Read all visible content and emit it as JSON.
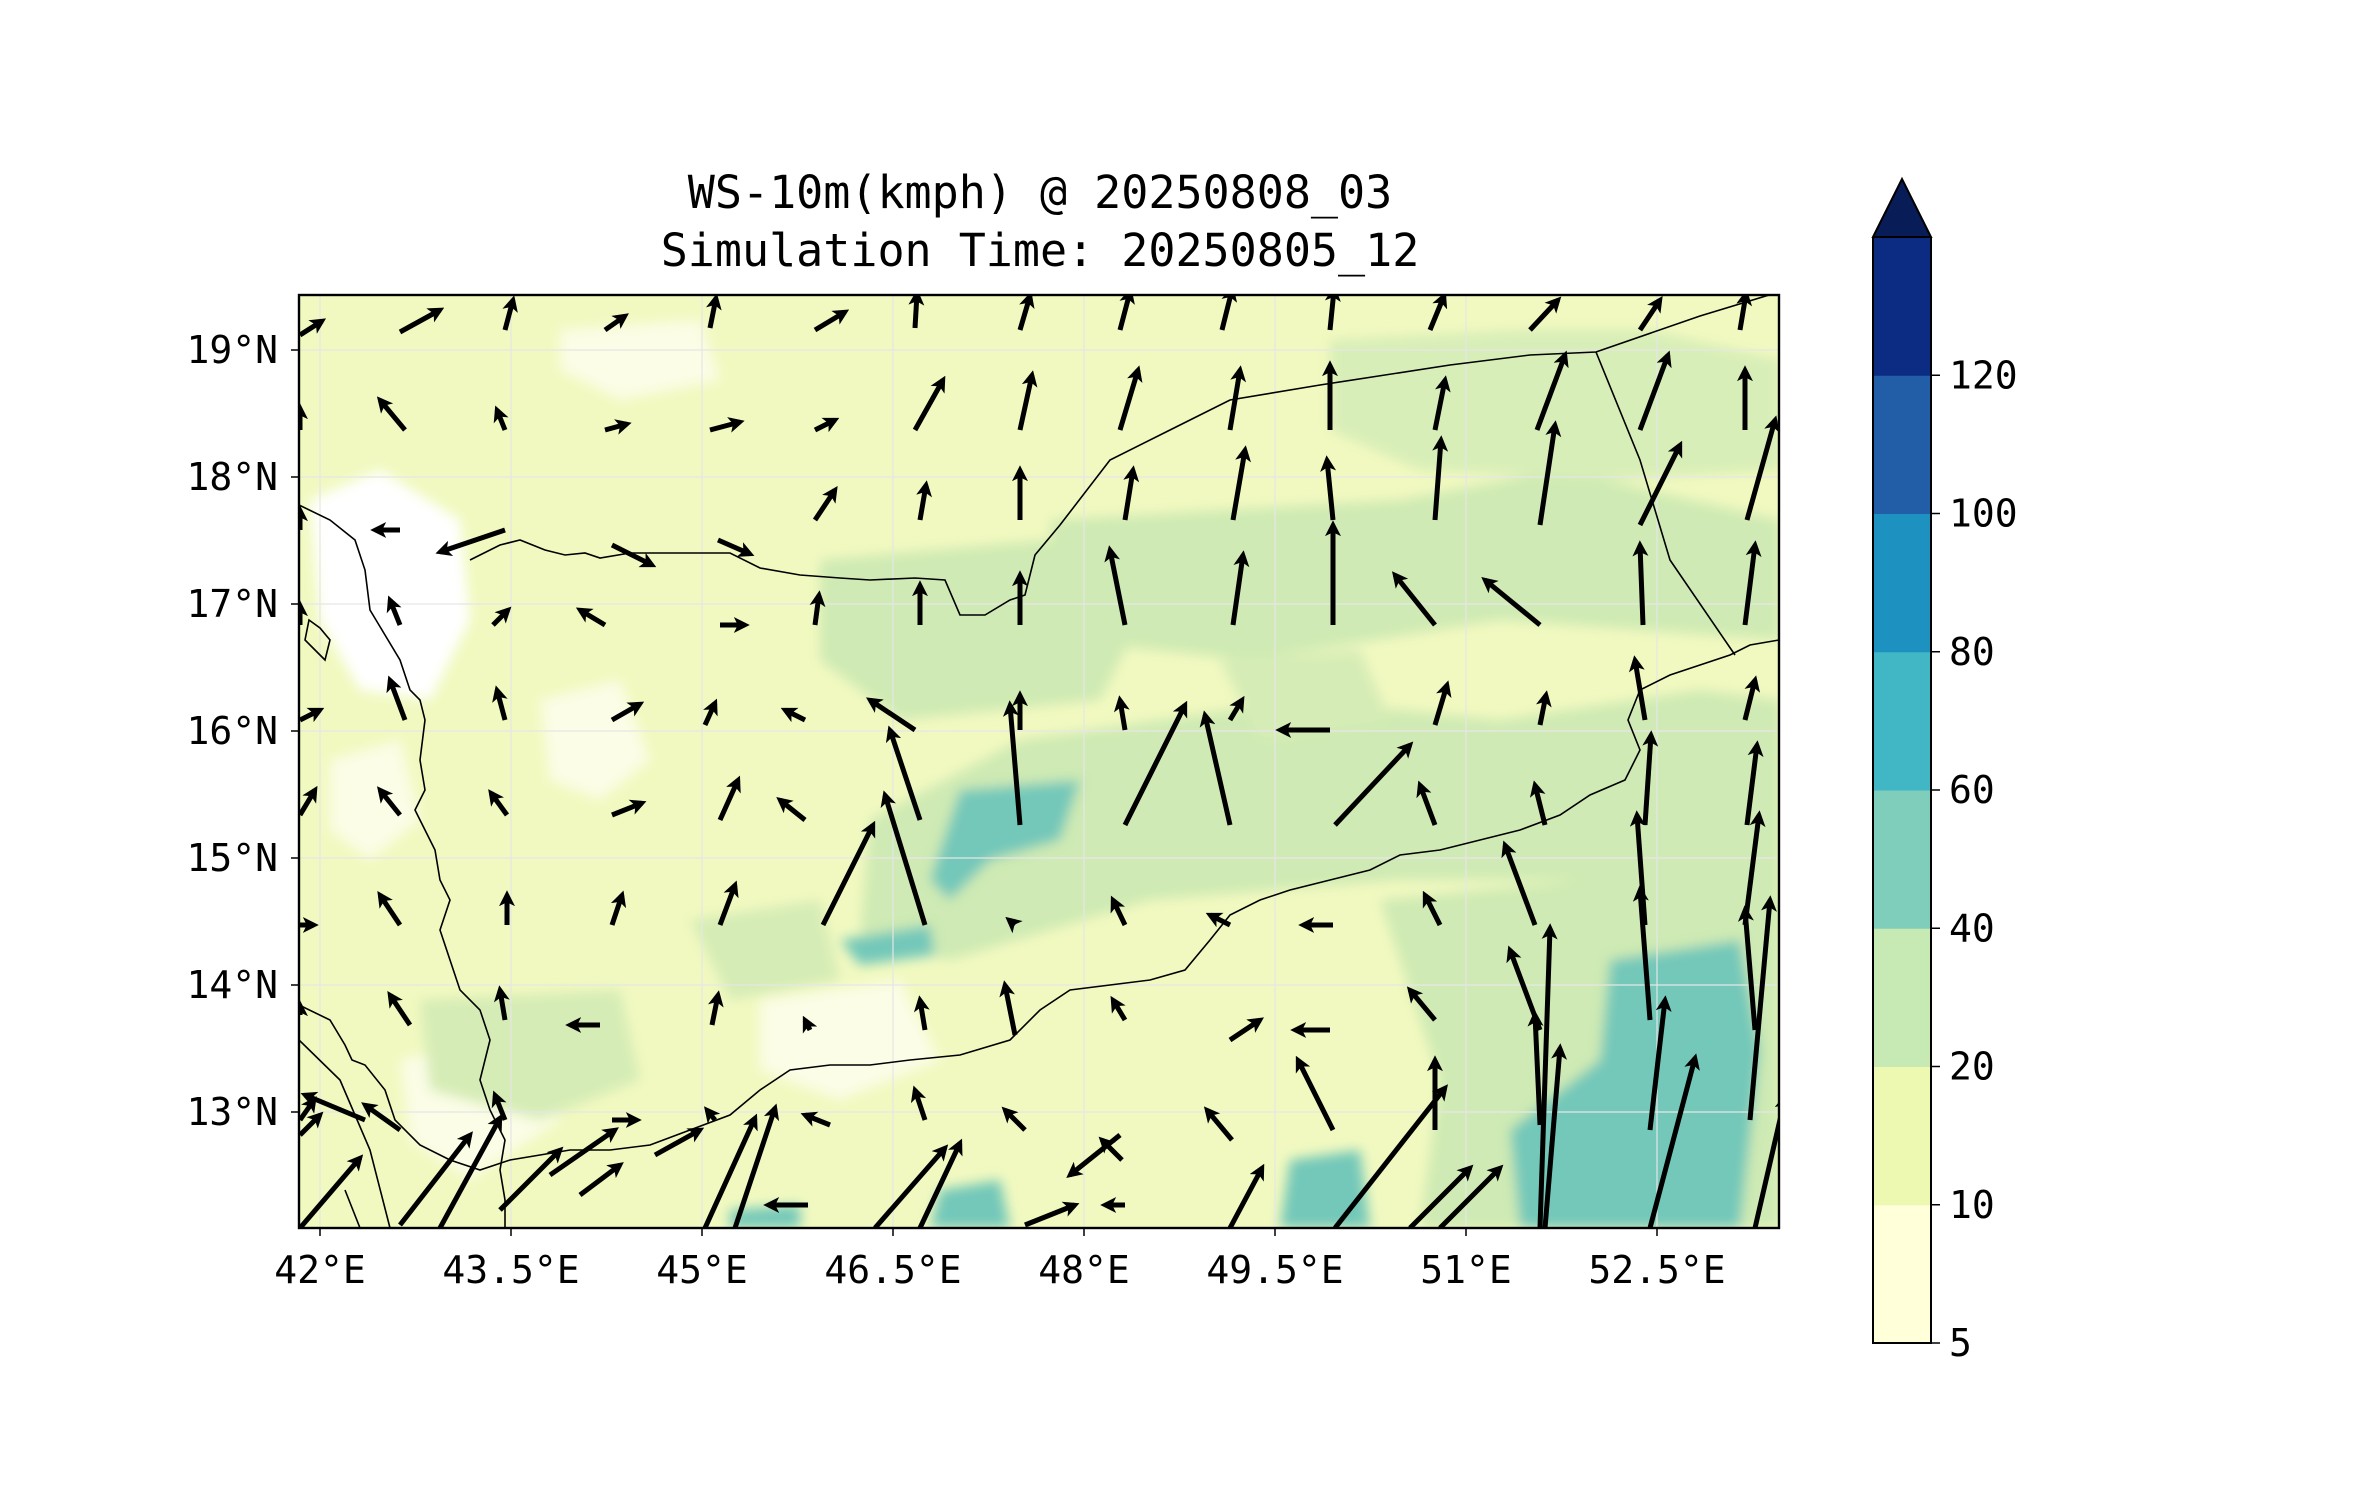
{
  "title": "WS-10m(kmph) @ 20250808_03",
  "subtitle": "Simulation Time: 20250805_12",
  "map": {
    "lon_range": [
      41.8,
      53.5
    ],
    "lat_range": [
      12.1,
      19.45
    ],
    "lon_ticks": [
      "42°E",
      "43.5°E",
      "45°E",
      "46.5°E",
      "48°E",
      "49.5°E",
      "51°E",
      "52.5°E"
    ],
    "lat_ticks": [
      "19°N",
      "18°N",
      "17°N",
      "16°N",
      "15°N",
      "14°N",
      "13°N"
    ],
    "gridlines": true,
    "field": "10 m wind speed",
    "unit": "kmph",
    "vectors": "black wind arrows indicating direction and speed"
  },
  "colorbar": {
    "levels": [
      "5",
      "10",
      "20",
      "40",
      "60",
      "80",
      "100",
      "120"
    ],
    "colors": [
      "#ffffd9",
      "#edf8b1",
      "#c7e9b4",
      "#7fcdbb",
      "#41b6c4",
      "#1d91c0",
      "#225ea8",
      "#0c2c84"
    ],
    "extend": "max",
    "extend_color": "#081d58"
  }
}
